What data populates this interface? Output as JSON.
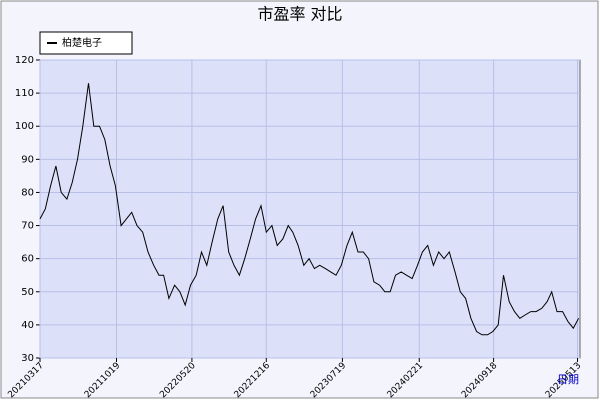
{
  "chart_data": {
    "type": "line",
    "title": "市盈率  对比",
    "x_label": "日期",
    "x": [
      "20210317",
      "20210401",
      "20210416",
      "20210501",
      "20210516",
      "20210601",
      "20210616",
      "20210701",
      "20210716",
      "20210801",
      "20210816",
      "20210901",
      "20210916",
      "20211001",
      "20211016",
      "20211101",
      "20211116",
      "20211201",
      "20211216",
      "20220101",
      "20220116",
      "20220201",
      "20220216",
      "20220301",
      "20220316",
      "20220401",
      "20220416",
      "20220501",
      "20220516",
      "20220601",
      "20220616",
      "20220701",
      "20220716",
      "20220801",
      "20220816",
      "20220901",
      "20220916",
      "20221001",
      "20221016",
      "20221101",
      "20221116",
      "20221201",
      "20221216",
      "20230101",
      "20230116",
      "20230201",
      "20230216",
      "20230301",
      "20230316",
      "20230401",
      "20230416",
      "20230501",
      "20230516",
      "20230601",
      "20230616",
      "20230701",
      "20230716",
      "20230801",
      "20230816",
      "20230901",
      "20230916",
      "20231001",
      "20231016",
      "20231101",
      "20231116",
      "20231201",
      "20231216",
      "20240101",
      "20240116",
      "20240201",
      "20240216",
      "20240301",
      "20240316",
      "20240401",
      "20240416",
      "20240501",
      "20240516",
      "20240601",
      "20240616",
      "20240701",
      "20240716",
      "20240801",
      "20240816",
      "20240901",
      "20240916",
      "20241001",
      "20241016",
      "20241101",
      "20241116",
      "20241201",
      "20241216",
      "20250101",
      "20250116",
      "20250201",
      "20250216",
      "20250301",
      "20250316",
      "20250401",
      "20250416",
      "20250501",
      "20250516"
    ],
    "series": [
      {
        "name": "柏楚电子",
        "color": "#000000",
        "values": [
          72,
          75,
          82,
          88,
          80,
          78,
          83,
          90,
          100,
          113,
          100,
          100,
          96,
          88,
          82,
          70,
          72,
          74,
          70,
          68,
          62,
          58,
          55,
          55,
          48,
          52,
          50,
          46,
          52,
          55,
          62,
          58,
          65,
          72,
          76,
          62,
          58,
          55,
          60,
          66,
          72,
          76,
          68,
          70,
          64,
          66,
          70,
          68,
          64,
          58,
          60,
          57,
          58,
          57,
          56,
          55,
          58,
          64,
          68,
          62,
          62,
          60,
          53,
          52,
          50,
          50,
          55,
          56,
          55,
          54,
          58,
          62,
          64,
          58,
          62,
          60,
          62,
          56,
          50,
          48,
          42,
          38,
          37,
          37,
          38,
          40,
          55,
          47,
          44,
          42,
          43,
          44,
          44,
          45,
          47,
          50,
          44,
          44,
          41,
          39,
          42
        ]
      }
    ],
    "xlim": [
      "20210317",
      "20250520"
    ],
    "xticks": [
      "20210317",
      "20211019",
      "20220520",
      "20221216",
      "20230719",
      "20240221",
      "20240918",
      "20250513"
    ],
    "ylim": [
      30,
      120
    ],
    "yticks": [
      30,
      40,
      50,
      60,
      70,
      80,
      90,
      100,
      110,
      120
    ],
    "grid": true
  }
}
